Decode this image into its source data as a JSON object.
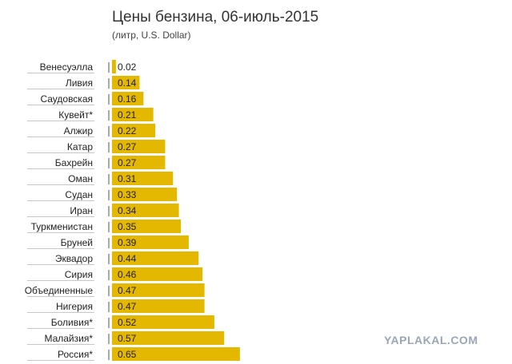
{
  "chart_data": {
    "type": "bar",
    "orientation": "horizontal",
    "title": "Цены бензина, 06-июль-2015",
    "subtitle": "(литр, U.S. Dollar)",
    "categories": [
      "Венесуэлла",
      "Ливия",
      "Саудовская",
      "Кувейт*",
      "Алжир",
      "Катар",
      "Бахрейн",
      "Оман",
      "Судан",
      "Иран",
      "Туркменистан",
      "Бруней",
      "Эквадор",
      "Сирия",
      "Объединенные",
      "Нигерия",
      "Боливия*",
      "Малайзия*",
      "Россия*"
    ],
    "values": [
      0.02,
      0.14,
      0.16,
      0.21,
      0.22,
      0.27,
      0.27,
      0.31,
      0.33,
      0.34,
      0.35,
      0.39,
      0.44,
      0.46,
      0.47,
      0.47,
      0.52,
      0.57,
      0.65
    ],
    "value_labels": [
      "0.02",
      "0.14",
      "0.16",
      "0.21",
      "0.22",
      "0.27",
      "0.27",
      "0.31",
      "0.33",
      "0.34",
      "0.35",
      "0.39",
      "0.44",
      "0.46",
      "0.47",
      "0.47",
      "0.52",
      "0.57",
      "0.65"
    ],
    "bar_color": "#e5b800",
    "grid": false,
    "legend": "none"
  },
  "watermark": "YAPLAKAL.COM"
}
